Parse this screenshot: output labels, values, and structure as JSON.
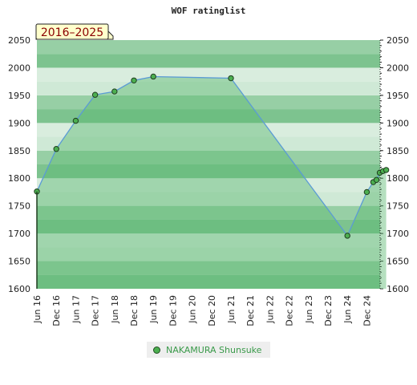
{
  "chart_data": {
    "type": "area",
    "title": "WOF ratinglist",
    "period_label": "2016–2025",
    "ylim": [
      1600,
      2050
    ],
    "y_ticks": [
      1600,
      1650,
      1700,
      1750,
      1800,
      1850,
      1900,
      1950,
      2000,
      2050
    ],
    "x_ticks": [
      "Jun 16",
      "Dec 16",
      "Jun 17",
      "Dec 17",
      "Jun 18",
      "Dec 18",
      "Jun 19",
      "Dec 19",
      "Jun 20",
      "Dec 20",
      "Jun 21",
      "Dec 21",
      "Jun 22",
      "Dec 22",
      "Jun 23",
      "Dec 23",
      "Jun 24",
      "Dec 24"
    ],
    "legend_position": "bottom",
    "colors": {
      "line": "#5b9bd5",
      "marker": "#4caf50",
      "band_dark": "#7dc38f",
      "band_light": "#cfe9d6",
      "fill": "#5cb870"
    },
    "series": [
      {
        "name": "NAKAMURA Shunsuke",
        "points": [
          {
            "x": "2016-06",
            "y": 1776
          },
          {
            "x": "2016-12",
            "y": 1853
          },
          {
            "x": "2017-06",
            "y": 1904
          },
          {
            "x": "2017-12",
            "y": 1951
          },
          {
            "x": "2018-06",
            "y": 1957
          },
          {
            "x": "2018-12",
            "y": 1977
          },
          {
            "x": "2019-06",
            "y": 1984
          },
          {
            "x": "2021-06",
            "y": 1981
          },
          {
            "x": "2024-06",
            "y": 1696
          },
          {
            "x": "2024-12",
            "y": 1775
          },
          {
            "x": "2025-02",
            "y": 1793
          },
          {
            "x": "2025-03",
            "y": 1797
          },
          {
            "x": "2025-04",
            "y": 1810
          },
          {
            "x": "2025-05",
            "y": 1813
          },
          {
            "x": "2025-06",
            "y": 1815
          }
        ]
      }
    ]
  }
}
